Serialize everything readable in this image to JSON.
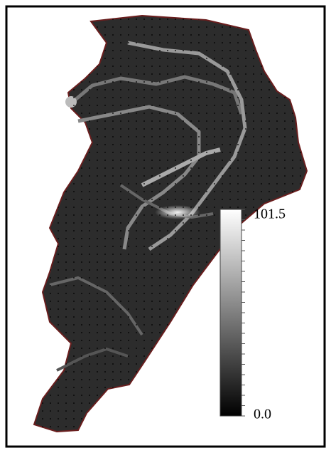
{
  "colorbar": {
    "max_label": "101.5",
    "min_label": "0.0"
  }
}
